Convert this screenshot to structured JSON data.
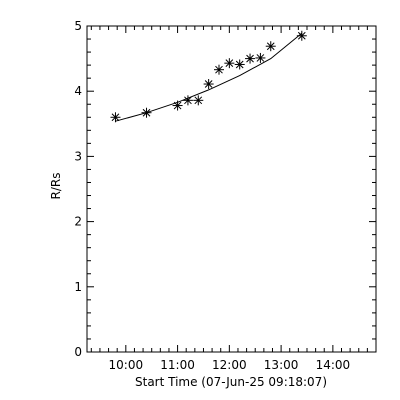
{
  "chart_data": {
    "type": "scatter",
    "title": "",
    "xlabel": "Start Time (07-Jun-25 09:18:07)",
    "ylabel": "R/Rs",
    "x_ticks": [
      "10:00",
      "11:00",
      "12:00",
      "13:00",
      "14:00"
    ],
    "y_ticks": [
      "0",
      "1",
      "2",
      "3",
      "4",
      "5"
    ],
    "xlim": [
      "09:15",
      "14:50"
    ],
    "ylim": [
      0,
      5
    ],
    "grid": false,
    "series": [
      {
        "marker": "asterisk",
        "points": [
          {
            "x": "09:48",
            "y": 3.6
          },
          {
            "x": "10:24",
            "y": 3.67
          },
          {
            "x": "11:00",
            "y": 3.78
          },
          {
            "x": "11:12",
            "y": 3.86
          },
          {
            "x": "11:24",
            "y": 3.86
          },
          {
            "x": "11:36",
            "y": 4.11
          },
          {
            "x": "11:48",
            "y": 4.33
          },
          {
            "x": "12:00",
            "y": 4.43
          },
          {
            "x": "12:12",
            "y": 4.41
          },
          {
            "x": "12:24",
            "y": 4.5
          },
          {
            "x": "12:36",
            "y": 4.51
          },
          {
            "x": "12:48",
            "y": 4.69
          },
          {
            "x": "13:24",
            "y": 4.85
          }
        ]
      },
      {
        "type": "line",
        "fit": "quadratic",
        "points": [
          {
            "x": "09:48",
            "y": 3.54
          },
          {
            "x": "10:24",
            "y": 3.67
          },
          {
            "x": "11:00",
            "y": 3.83
          },
          {
            "x": "11:36",
            "y": 4.02
          },
          {
            "x": "12:12",
            "y": 4.24
          },
          {
            "x": "12:48",
            "y": 4.5
          },
          {
            "x": "13:24",
            "y": 4.89
          }
        ]
      }
    ]
  }
}
